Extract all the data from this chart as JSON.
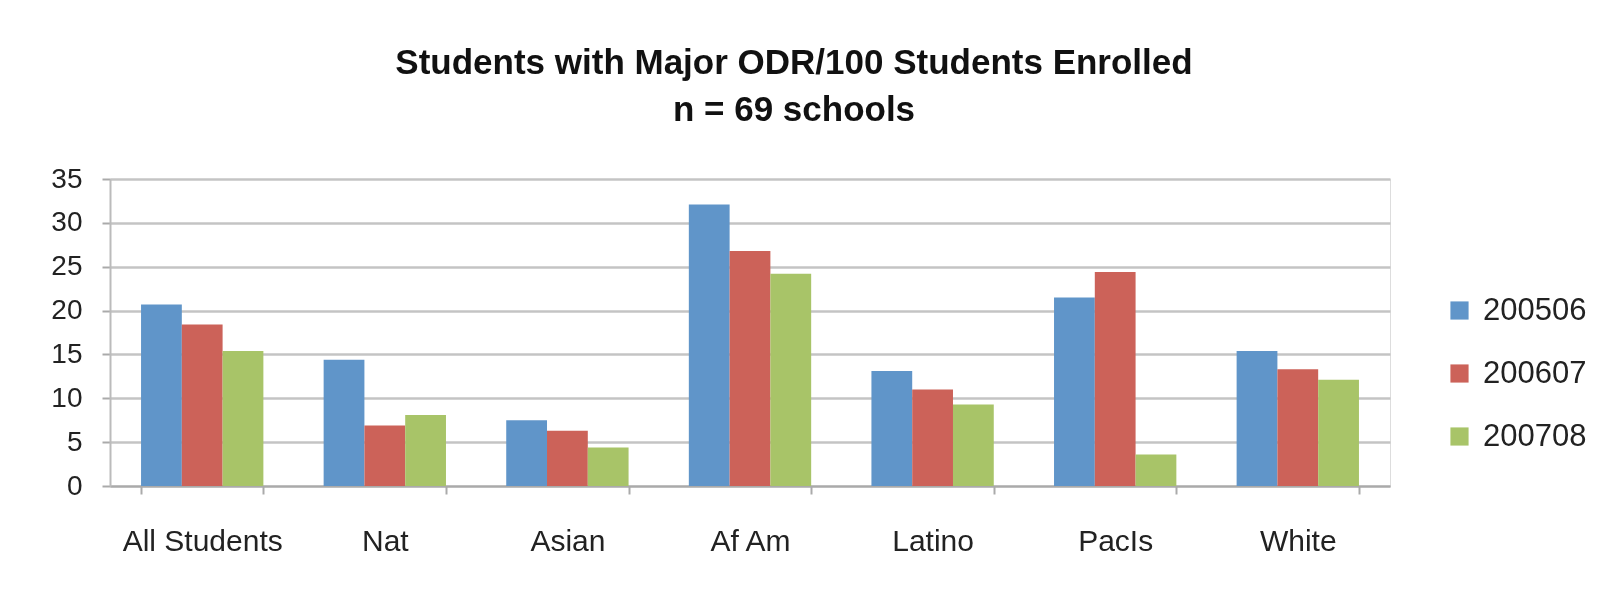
{
  "chart_data": {
    "type": "bar",
    "title": "Students with Major ODR/100 Students Enrolled",
    "subtitle": "n = 69 schools",
    "categories": [
      "All Students",
      "Nat",
      "Asian",
      "Af Am",
      "Latino",
      "PacIs",
      "White"
    ],
    "series": [
      {
        "name": "200506",
        "color": "#6095c9",
        "values": [
          20.7,
          14.4,
          7.5,
          32.1,
          13.1,
          21.5,
          15.4
        ]
      },
      {
        "name": "200607",
        "color": "#cc6259",
        "values": [
          18.4,
          6.9,
          6.3,
          26.8,
          11.0,
          24.4,
          13.3
        ]
      },
      {
        "name": "200708",
        "color": "#a8c468",
        "values": [
          15.4,
          8.1,
          4.4,
          24.2,
          9.3,
          3.6,
          12.1
        ]
      }
    ],
    "ylim": [
      0,
      35
    ],
    "yticks": [
      0,
      5,
      10,
      15,
      20,
      25,
      30,
      35
    ],
    "grid": "y",
    "legend": "right"
  }
}
